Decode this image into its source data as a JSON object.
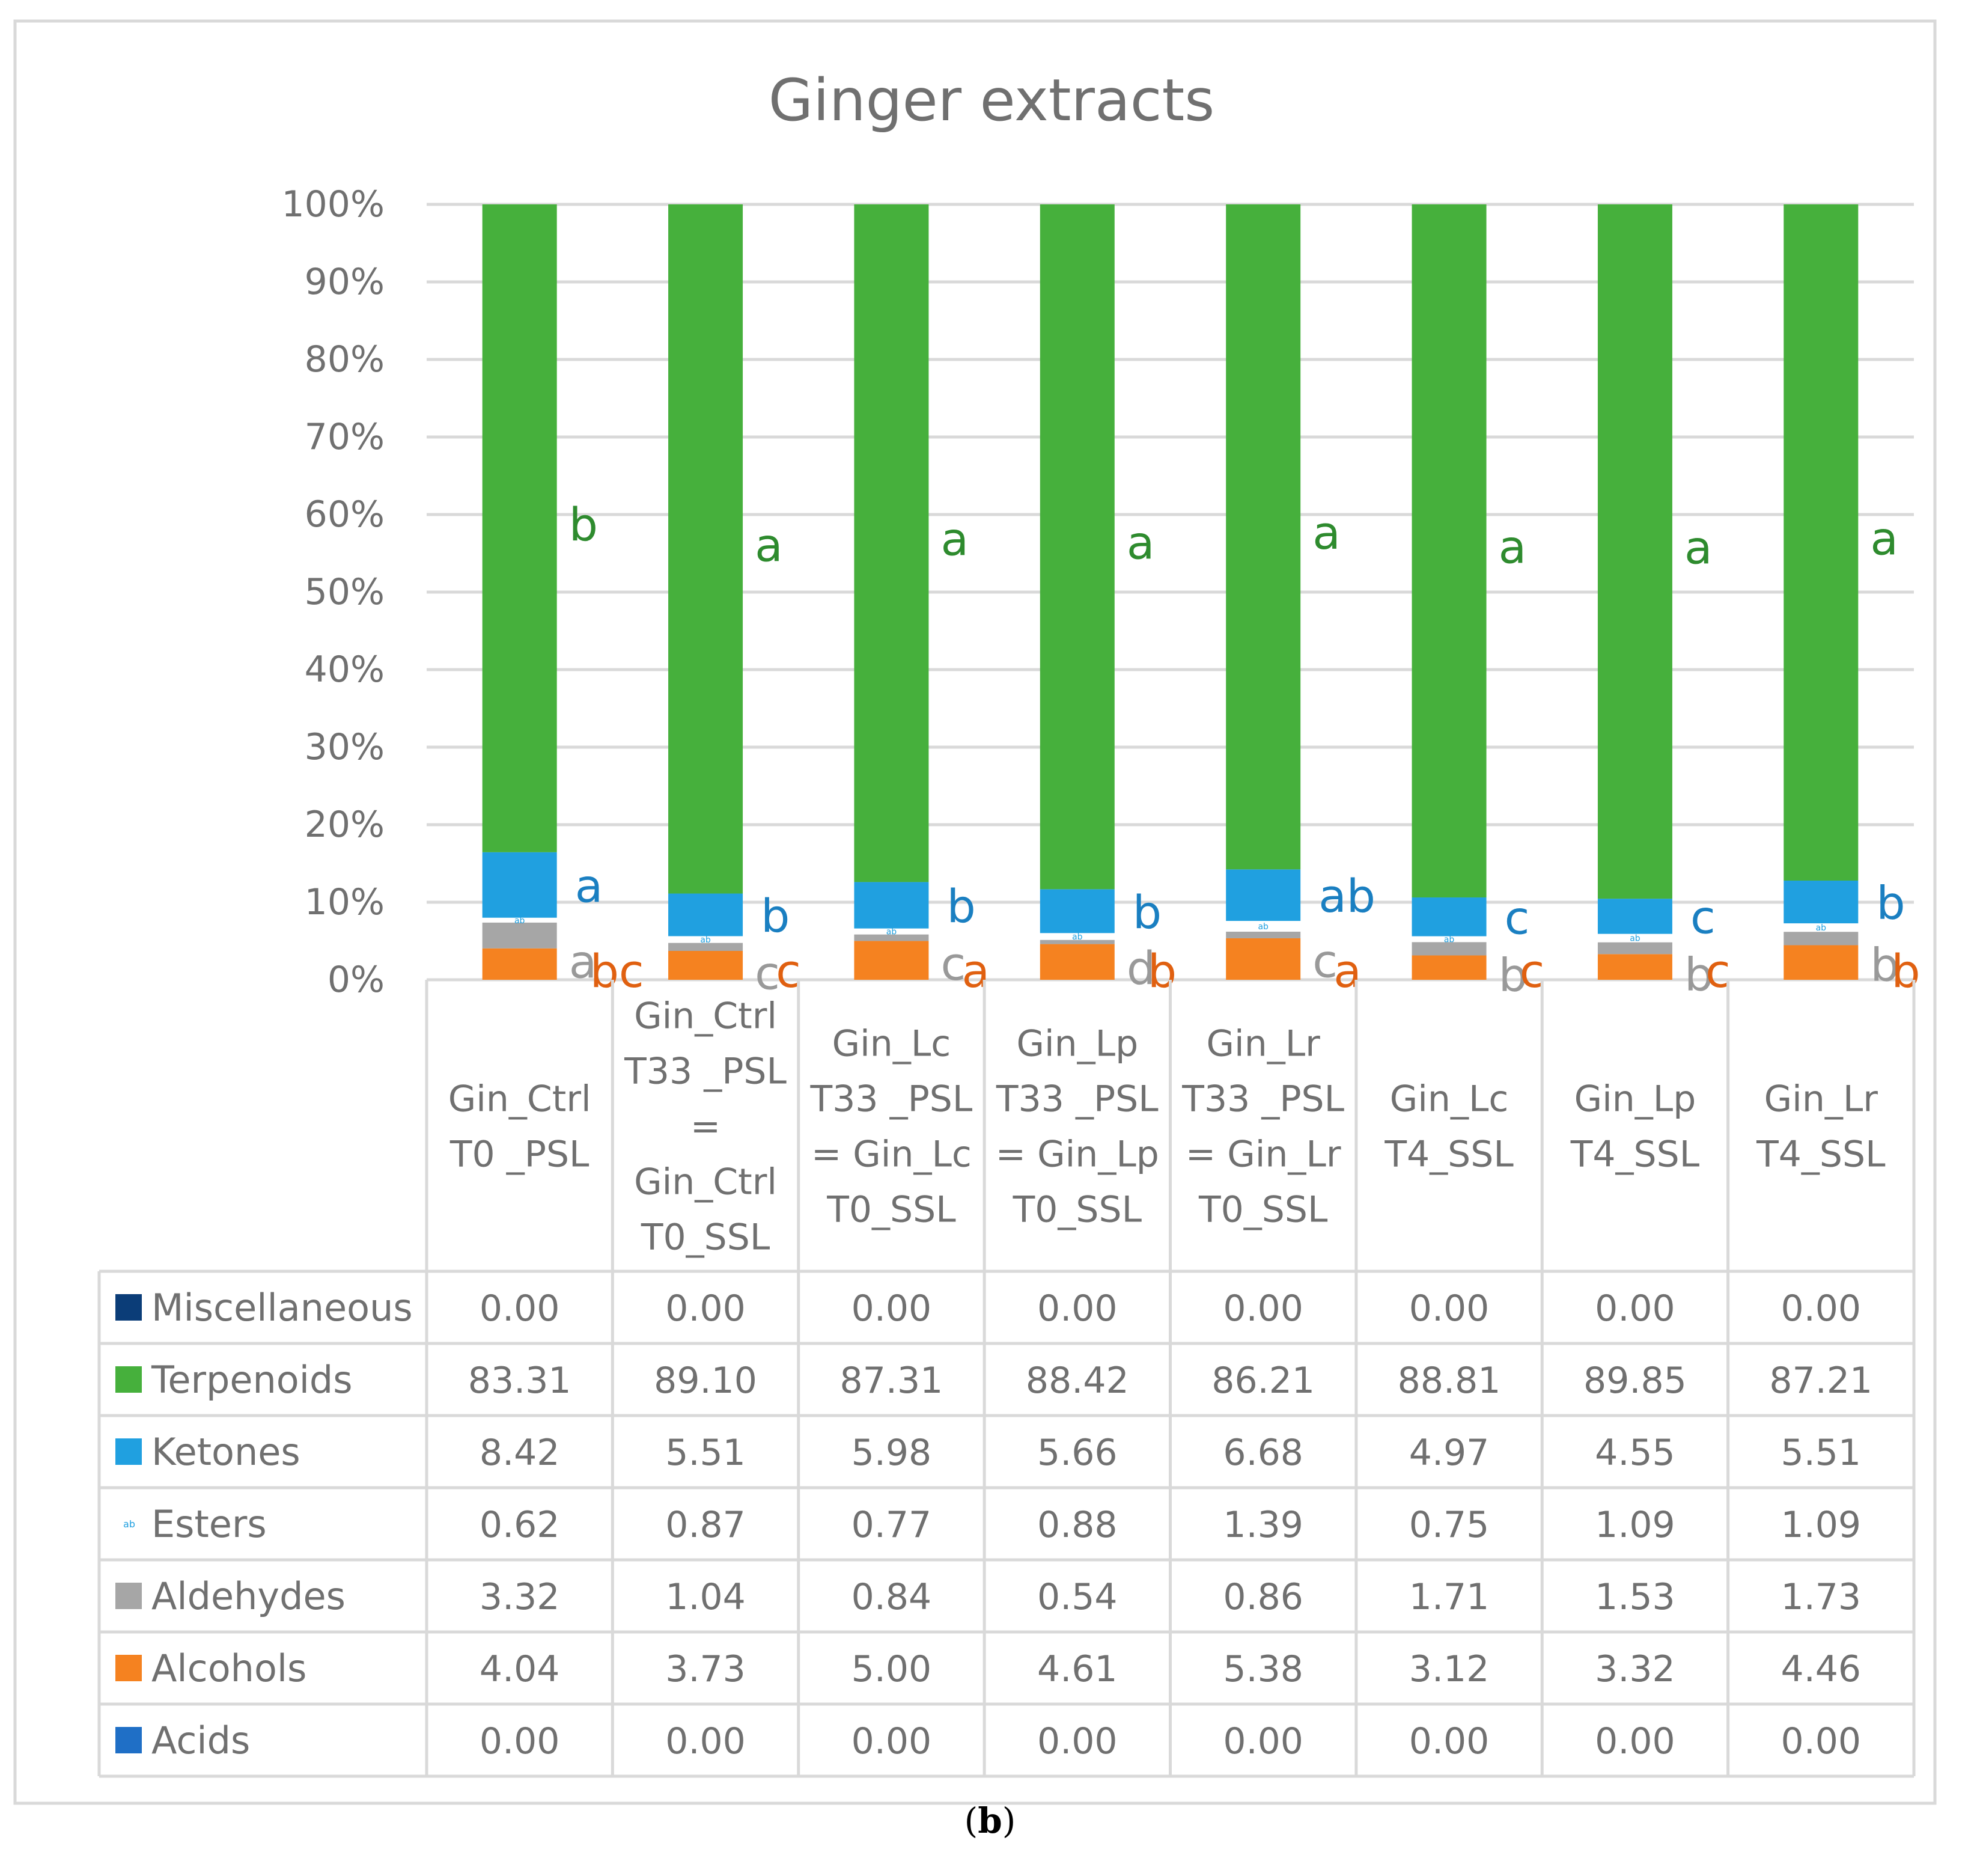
{
  "chart_data": {
    "type": "bar",
    "stacked": true,
    "percent_stacked": true,
    "title": "Ginger extracts",
    "y_tick_labels": [
      "0%",
      "10%",
      "20%",
      "30%",
      "40%",
      "50%",
      "60%",
      "70%",
      "80%",
      "90%",
      "100%"
    ],
    "ylim": [
      0,
      100
    ],
    "grid": true,
    "legend_placement": "data-table-left",
    "categories": [
      [
        "Gin_Ctrl",
        "T0 _PSL"
      ],
      [
        "Gin_Ctrl",
        "T33 _PSL",
        "=",
        "Gin_Ctrl",
        "T0_SSL"
      ],
      [
        "Gin_Lc",
        "T33 _PSL",
        "= Gin_Lc",
        "T0_SSL"
      ],
      [
        "Gin_Lp",
        "T33 _PSL",
        "= Gin_Lp",
        "T0_SSL"
      ],
      [
        "Gin_Lr",
        "T33 _PSL",
        "= Gin_Lr",
        "T0_SSL"
      ],
      [
        "Gin_Lc",
        "T4_SSL"
      ],
      [
        "Gin_Lp",
        "T4_SSL"
      ],
      [
        "Gin_Lr",
        "T4_SSL"
      ]
    ],
    "series": [
      {
        "name": "Miscellaneous",
        "color": "#0b3d78",
        "values": [
          "0.00",
          "0.00",
          "0.00",
          "0.00",
          "0.00",
          "0.00",
          "0.00",
          "0.00"
        ]
      },
      {
        "name": "Terpenoids",
        "color": "#46b03c",
        "values": [
          "83.31",
          "89.10",
          "87.31",
          "88.42",
          "86.21",
          "88.81",
          "89.85",
          "87.21"
        ]
      },
      {
        "name": "Ketones",
        "color": "#20a0e0",
        "values": [
          "8.42",
          "5.51",
          "5.98",
          "5.66",
          "6.68",
          "4.97",
          "4.55",
          "5.51"
        ]
      },
      {
        "name": "Esters",
        "color": "#ffffff",
        "values": [
          "0.62",
          "0.87",
          "0.77",
          "0.88",
          "1.39",
          "0.75",
          "1.09",
          "1.09"
        ]
      },
      {
        "name": "Aldehydes",
        "color": "#a6a6a6",
        "values": [
          "3.32",
          "1.04",
          "0.84",
          "0.54",
          "0.86",
          "1.71",
          "1.53",
          "1.73"
        ]
      },
      {
        "name": "Alcohols",
        "color": "#f58220",
        "values": [
          "4.04",
          "3.73",
          "5.00",
          "4.61",
          "5.38",
          "3.12",
          "3.32",
          "4.46"
        ]
      },
      {
        "name": "Acids",
        "color": "#1f6fc6",
        "values": [
          "0.00",
          "0.00",
          "0.00",
          "0.00",
          "0.00",
          "0.00",
          "0.00",
          "0.00"
        ]
      }
    ],
    "letter_annotations": {
      "Terpenoids": {
        "color": "#2e8b2e",
        "letters": [
          "b",
          "a",
          "a",
          "a",
          "a",
          "a",
          "a",
          "a"
        ]
      },
      "Ketones": {
        "color": "#1a7fc1",
        "letters": [
          "a",
          "b",
          "b",
          "b",
          "ab",
          "c",
          "c",
          "b"
        ]
      },
      "Aldehydes": {
        "color": "#999999",
        "letters": [
          "a",
          "c",
          "c",
          "d",
          "c",
          "b",
          "b",
          "b"
        ]
      },
      "Alcohols": {
        "color": "#e06010",
        "letters": [
          "bc",
          "c",
          "a",
          "b",
          "a",
          "c",
          "c",
          "b"
        ]
      }
    },
    "esters_legend_glyph": "ab",
    "panel_label": "(b)"
  }
}
